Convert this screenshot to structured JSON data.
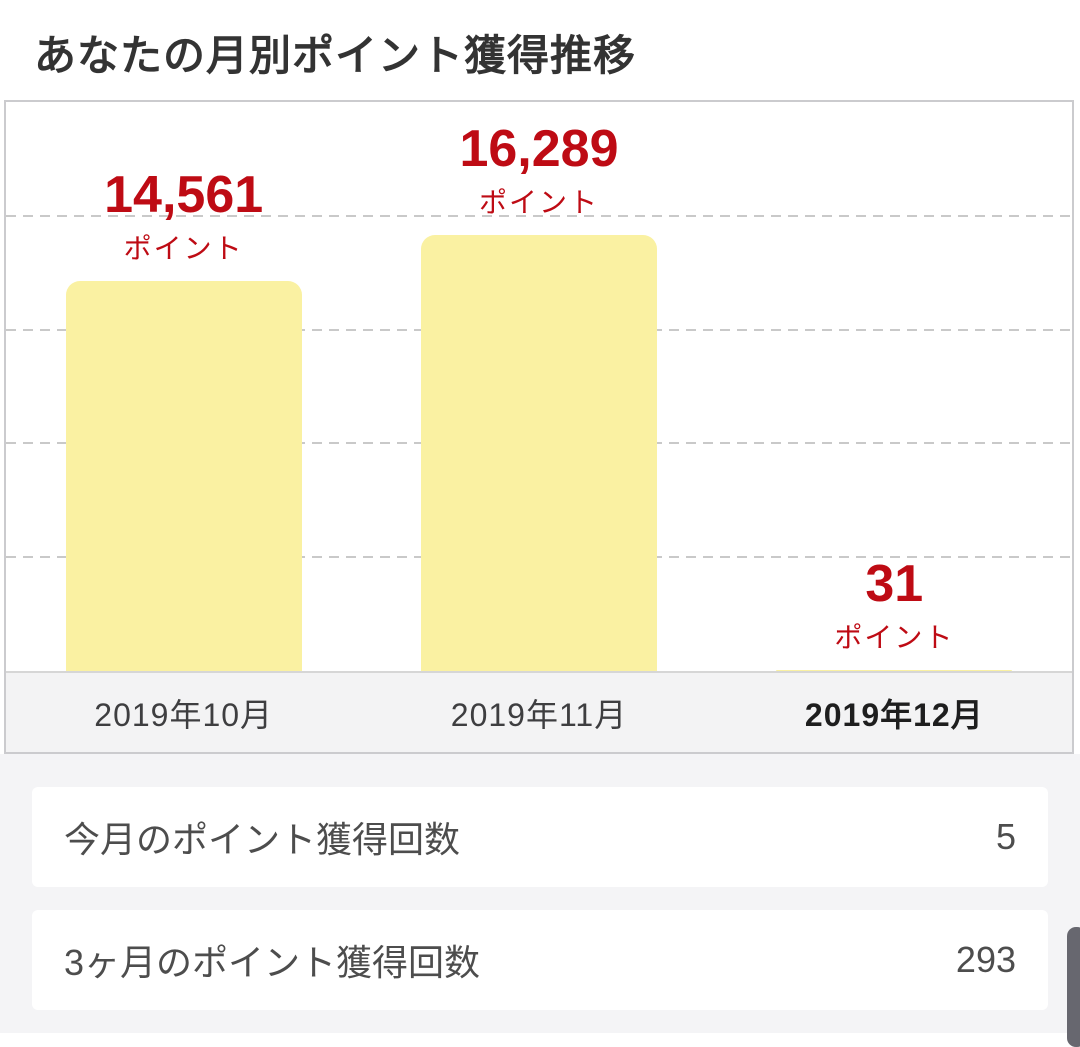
{
  "page": {
    "title": "あなたの月別ポイント獲得推移"
  },
  "chart_data": {
    "type": "bar",
    "title": "あなたの月別ポイント獲得推移",
    "categories": [
      "2019年10月",
      "2019年11月",
      "2019年12月"
    ],
    "values": [
      14561,
      16289,
      31
    ],
    "value_labels": [
      "14,561",
      "16,289",
      "31"
    ],
    "unit_label": "ポイント",
    "xlabel": "",
    "ylabel": "",
    "ylim": [
      0,
      21260
    ],
    "grid": "horizontal-dashed",
    "legend": false,
    "highlight_index": 2,
    "highlighted_category": "2019年12月",
    "bar_color": "#faf1a2",
    "value_label_color": "#be0b14"
  },
  "summary_rows": [
    {
      "label": "今月のポイント獲得回数",
      "value": "5"
    },
    {
      "label": "3ヶ月のポイント獲得回数",
      "value": "293"
    }
  ]
}
